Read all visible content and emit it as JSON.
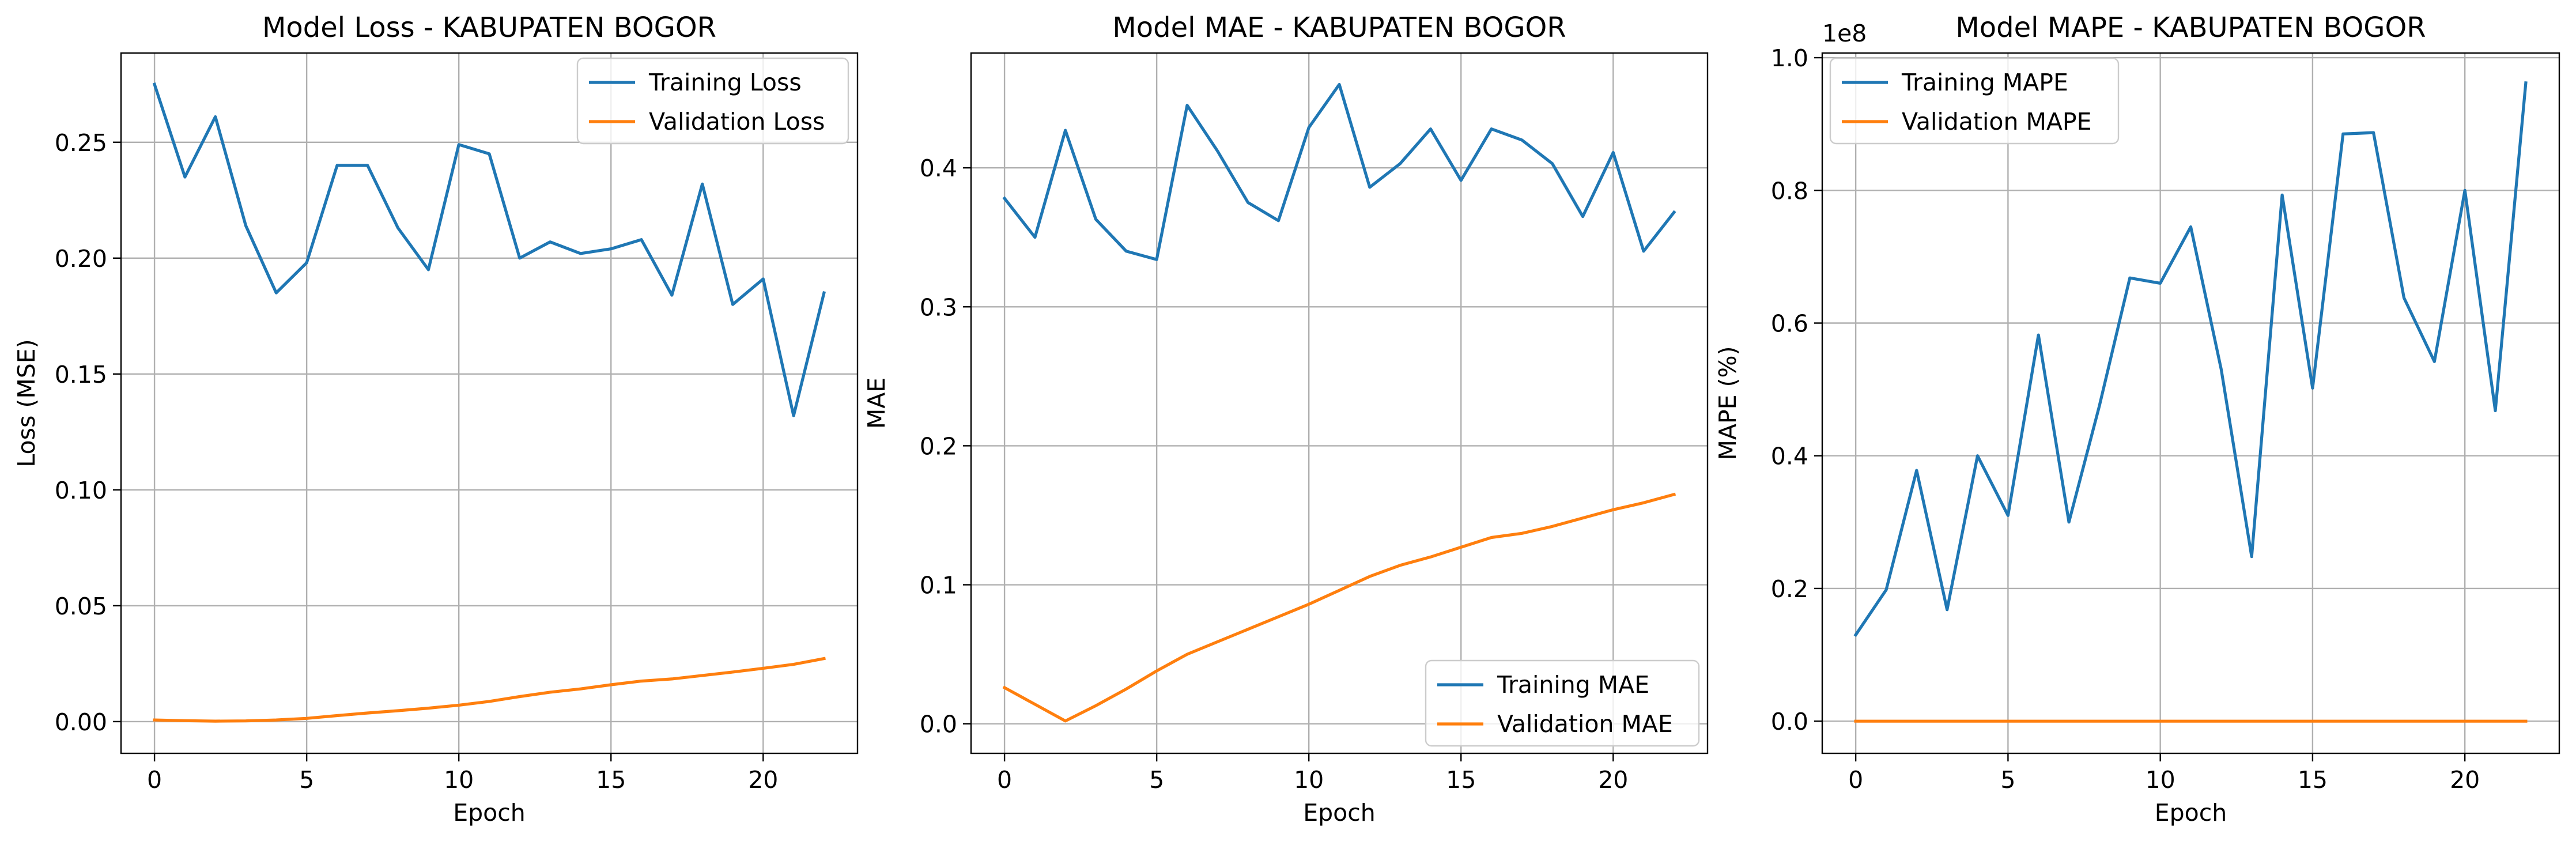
{
  "colors": {
    "training": "#1f77b4",
    "validation": "#ff7f0e"
  },
  "chart_data": [
    {
      "type": "line",
      "title": "Model Loss - KABUPATEN BOGOR",
      "xlabel": "Epoch",
      "ylabel": "Loss (MSE)",
      "xlim": [
        -1.1,
        23.1
      ],
      "ylim": [
        -0.0137,
        0.2885
      ],
      "xticks": [
        0,
        5,
        10,
        15,
        20
      ],
      "yticks": [
        0.0,
        0.05,
        0.1,
        0.15,
        0.2,
        0.25
      ],
      "ytick_labels": [
        "0.00",
        "0.05",
        "0.10",
        "0.15",
        "0.20",
        "0.25"
      ],
      "grid": true,
      "legend_position": "top-right",
      "x": [
        0,
        1,
        2,
        3,
        4,
        5,
        6,
        7,
        8,
        9,
        10,
        11,
        12,
        13,
        14,
        15,
        16,
        17,
        18,
        19,
        20,
        21,
        22
      ],
      "series": [
        {
          "name": "Training Loss",
          "color": "#1f77b4",
          "values": [
            0.275,
            0.235,
            0.261,
            0.214,
            0.185,
            0.198,
            0.24,
            0.24,
            0.213,
            0.195,
            0.249,
            0.245,
            0.2,
            0.207,
            0.202,
            0.204,
            0.208,
            0.184,
            0.232,
            0.18,
            0.191,
            0.132,
            0.185
          ]
        },
        {
          "name": "Validation Loss",
          "color": "#ff7f0e",
          "values": [
            0.0007,
            0.0004,
            0.0002,
            0.0003,
            0.0007,
            0.0014,
            0.0026,
            0.0037,
            0.0047,
            0.0058,
            0.0071,
            0.0087,
            0.0108,
            0.0127,
            0.0141,
            0.0159,
            0.0175,
            0.0184,
            0.0199,
            0.0214,
            0.023,
            0.0247,
            0.0272
          ]
        }
      ]
    },
    {
      "type": "line",
      "title": "Model MAE - KABUPATEN BOGOR",
      "xlabel": "Epoch",
      "ylabel": "MAE",
      "xlim": [
        -1.1,
        23.1
      ],
      "ylim": [
        -0.0213,
        0.4826
      ],
      "xticks": [
        0,
        5,
        10,
        15,
        20
      ],
      "yticks": [
        0.0,
        0.1,
        0.2,
        0.3,
        0.4
      ],
      "ytick_labels": [
        "0.0",
        "0.1",
        "0.2",
        "0.3",
        "0.4"
      ],
      "grid": true,
      "legend_position": "bottom-right",
      "x": [
        0,
        1,
        2,
        3,
        4,
        5,
        6,
        7,
        8,
        9,
        10,
        11,
        12,
        13,
        14,
        15,
        16,
        17,
        18,
        19,
        20,
        21,
        22
      ],
      "series": [
        {
          "name": "Training MAE",
          "color": "#1f77b4",
          "values": [
            0.378,
            0.35,
            0.427,
            0.363,
            0.34,
            0.334,
            0.445,
            0.412,
            0.375,
            0.362,
            0.429,
            0.46,
            0.386,
            0.403,
            0.428,
            0.391,
            0.428,
            0.42,
            0.403,
            0.365,
            0.411,
            0.34,
            0.368
          ]
        },
        {
          "name": "Validation MAE",
          "color": "#ff7f0e",
          "values": [
            0.026,
            0.014,
            0.002,
            0.013,
            0.025,
            0.038,
            0.05,
            0.059,
            0.068,
            0.077,
            0.086,
            0.096,
            0.106,
            0.114,
            0.12,
            0.127,
            0.134,
            0.137,
            0.142,
            0.148,
            0.154,
            0.159,
            0.165
          ]
        }
      ]
    },
    {
      "type": "line",
      "title": "Model MAPE - KABUPATEN BOGOR",
      "xlabel": "Epoch",
      "ylabel": "MAPE (%)",
      "y_offset_label": "1e8",
      "xlim": [
        -1.1,
        23.1
      ],
      "ylim": [
        -0.0485,
        1.007
      ],
      "xticks": [
        0,
        5,
        10,
        15,
        20
      ],
      "yticks": [
        0.0,
        0.2,
        0.4,
        0.6,
        0.8,
        1.0
      ],
      "ytick_labels": [
        "0.0",
        "0.2",
        "0.4",
        "0.6",
        "0.8",
        "1.0"
      ],
      "grid": true,
      "legend_position": "top-left",
      "x": [
        0,
        1,
        2,
        3,
        4,
        5,
        6,
        7,
        8,
        9,
        10,
        11,
        12,
        13,
        14,
        15,
        16,
        17,
        18,
        19,
        20,
        21,
        22
      ],
      "series": [
        {
          "name": "Training MAPE",
          "color": "#1f77b4",
          "values": [
            0.13,
            0.198,
            0.378,
            0.168,
            0.4,
            0.31,
            0.582,
            0.3,
            0.475,
            0.668,
            0.66,
            0.745,
            0.53,
            0.248,
            0.793,
            0.502,
            0.885,
            0.887,
            0.638,
            0.542,
            0.8,
            0.468,
            0.962
          ]
        },
        {
          "name": "Validation MAPE",
          "color": "#ff7f0e",
          "values": [
            0,
            0,
            0,
            0,
            0,
            0,
            0,
            0,
            0,
            0,
            0,
            0,
            0,
            0,
            0,
            0,
            0,
            0,
            0,
            0,
            0,
            0,
            0
          ]
        }
      ]
    }
  ]
}
